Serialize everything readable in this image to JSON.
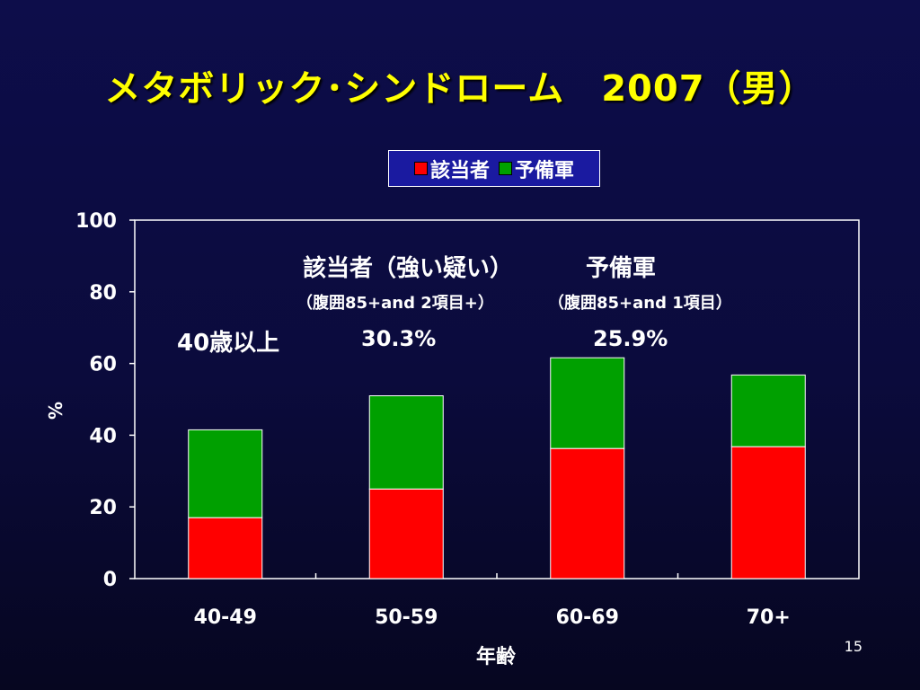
{
  "slide": {
    "title": "メタボリック･シンドローム　2007（男）",
    "page_number": "15"
  },
  "legend": {
    "items": [
      {
        "label": "該当者",
        "color": "#ff0000"
      },
      {
        "label": "予備軍",
        "color": "#00a000"
      }
    ]
  },
  "annotations": {
    "heading_left": "該当者（強い疑い）",
    "heading_right": "予備軍",
    "criteria_left": "（腹囲85+and 2項目+）",
    "criteria_right": "（腹囲85+and 1項目）",
    "row_label": "40歳以上",
    "value_left": "30.3%",
    "value_right": "25.9%"
  },
  "chart_data": {
    "type": "bar",
    "stacked": true,
    "categories": [
      "40-49",
      "50-59",
      "60-69",
      "70+"
    ],
    "series": [
      {
        "name": "該当者",
        "color": "#ff0000",
        "values": [
          17,
          25,
          36.3,
          36.8
        ]
      },
      {
        "name": "予備軍",
        "color": "#00a000",
        "values": [
          24.5,
          26,
          25.3,
          20
        ]
      }
    ],
    "xlabel": "年齢",
    "ylabel": "%",
    "ylim": [
      0,
      100
    ],
    "yticks": [
      0,
      20,
      40,
      60,
      80,
      100
    ],
    "grid": false,
    "legend_position": "top"
  }
}
